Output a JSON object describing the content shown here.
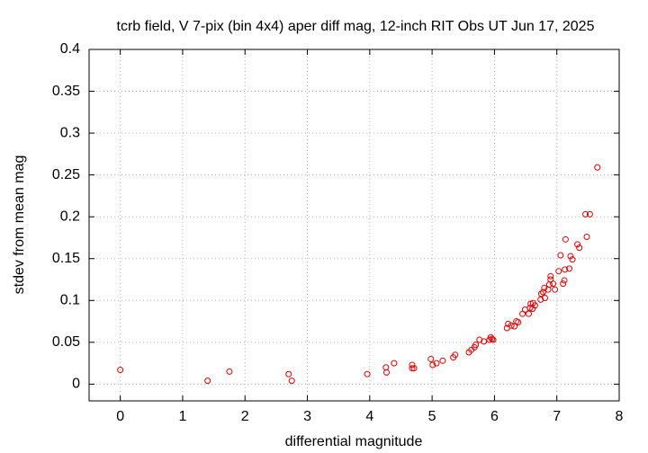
{
  "chart_data": {
    "type": "scatter",
    "title": "tcrb field, V 7-pix (bin 4x4) aper diff mag,  12-inch RIT Obs UT Jun 17, 2025",
    "x_label": "differential magnitude",
    "y_label": "stdev from mean mag",
    "color": "#e00000",
    "grid": true,
    "xlim": [
      -0.5,
      8
    ],
    "xticks": [
      0,
      1,
      2,
      3,
      4,
      5,
      6,
      7,
      8
    ],
    "ylim": [
      -0.02,
      0.4
    ],
    "yticks": [
      0,
      0.05,
      0.1,
      0.15,
      0.2,
      0.25,
      0.3,
      0.35,
      0.4
    ],
    "x": [
      0,
      1.4,
      1.75,
      2.7,
      2.75,
      3.96,
      4.26,
      4.27,
      4.39,
      4.68,
      4.68,
      4.71,
      4.98,
      5.01,
      5.07,
      5.17,
      5.34,
      5.37,
      5.59,
      5.63,
      5.68,
      5.7,
      5.76,
      5.83,
      5.92,
      5.94,
      5.96,
      5.98,
      6.2,
      6.22,
      6.27,
      6.32,
      6.35,
      6.38,
      6.45,
      6.49,
      6.55,
      6.57,
      6.58,
      6.61,
      6.62,
      6.65,
      6.74,
      6.75,
      6.78,
      6.8,
      6.81,
      6.86,
      6.88,
      6.9,
      6.9,
      6.94,
      6.97,
      7.03,
      7.06,
      7.1,
      7.12,
      7.13,
      7.14,
      7.2,
      7.22,
      7.25,
      7.33,
      7.36,
      7.46,
      7.48,
      7.53,
      7.65
    ],
    "values": [
      0.017,
      0.004,
      0.015,
      0.012,
      0.004,
      0.012,
      0.02,
      0.014,
      0.025,
      0.023,
      0.019,
      0.019,
      0.03,
      0.023,
      0.025,
      0.028,
      0.032,
      0.035,
      0.038,
      0.041,
      0.044,
      0.047,
      0.053,
      0.051,
      0.053,
      0.056,
      0.054,
      0.053,
      0.067,
      0.072,
      0.07,
      0.069,
      0.075,
      0.074,
      0.084,
      0.089,
      0.084,
      0.091,
      0.096,
      0.09,
      0.097,
      0.094,
      0.101,
      0.108,
      0.11,
      0.115,
      0.103,
      0.113,
      0.119,
      0.125,
      0.129,
      0.12,
      0.113,
      0.135,
      0.154,
      0.12,
      0.124,
      0.137,
      0.173,
      0.138,
      0.153,
      0.149,
      0.167,
      0.163,
      0.203,
      0.176,
      0.203,
      0.259
    ]
  }
}
